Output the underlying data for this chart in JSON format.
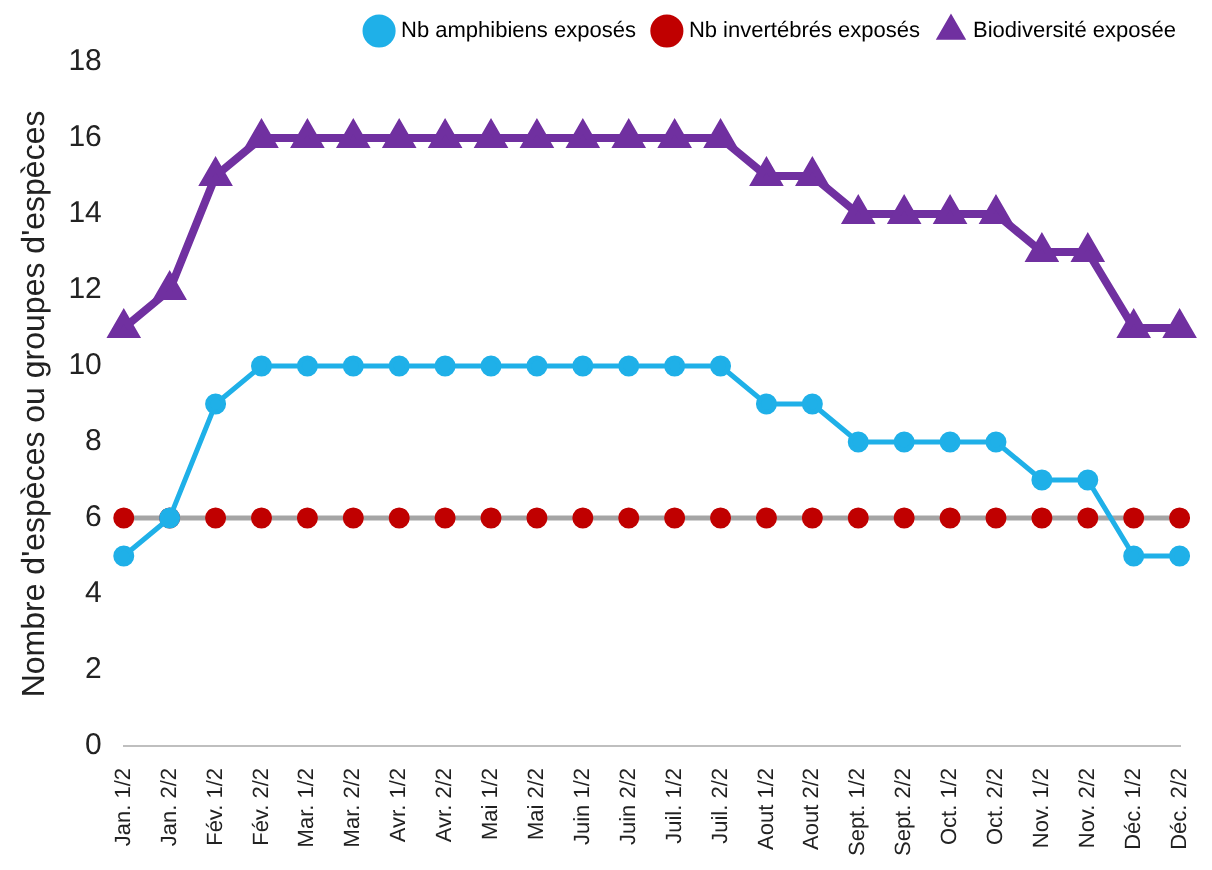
{
  "chart_data": {
    "type": "line",
    "ylabel": "Nombre d'espèces ou groupes d'espèces",
    "categories": [
      "Jan. 1/2",
      "Jan. 2/2",
      "Fév. 1/2",
      "Fév. 2/2",
      "Mar. 1/2",
      "Mar. 2/2",
      "Avr. 1/2",
      "Avr. 2/2",
      "Mai 1/2",
      "Mai 2/2",
      "Juin 1/2",
      "Juin 2/2",
      "Juil. 1/2",
      "Juil. 2/2",
      "Aout 1/2",
      "Aout 2/2",
      "Sept. 1/2",
      "Sept. 2/2",
      "Oct. 1/2",
      "Oct. 2/2",
      "Nov. 1/2",
      "Nov. 2/2",
      "Déc. 1/2",
      "Déc. 2/2"
    ],
    "series": [
      {
        "name": "Nb amphibiens exposés",
        "color": "#1fb0e8",
        "marker": "circle",
        "values": [
          5,
          6,
          9,
          10,
          10,
          10,
          10,
          10,
          10,
          10,
          10,
          10,
          10,
          10,
          9,
          9,
          8,
          8,
          8,
          8,
          7,
          7,
          5,
          5
        ]
      },
      {
        "name": "Nb invertébrés exposés",
        "color": "#a5a5a5",
        "colors": [
          "#c00000",
          "#c00000",
          "#c00000",
          "#c00000",
          "#c00000",
          "#c00000",
          "#c00000",
          "#c00000",
          "#c00000",
          "#c00000",
          "#c00000",
          "#c00000",
          "#c00000",
          "#c00000",
          "#c00000",
          "#c00000",
          "#c00000",
          "#c00000",
          "#c00000",
          "#c00000",
          "#c00000",
          "#c00000",
          "#c00000",
          "#c00000"
        ],
        "marker": "circle",
        "values": [
          6,
          6,
          6,
          6,
          6,
          6,
          6,
          6,
          6,
          6,
          6,
          6,
          6,
          6,
          6,
          6,
          6,
          6,
          6,
          6,
          6,
          6,
          6,
          6
        ]
      },
      {
        "name": "Biodiversité exposée",
        "color": "#7030a0",
        "marker": "triangle",
        "values": [
          11,
          12,
          15,
          16,
          16,
          16,
          16,
          16,
          16,
          16,
          16,
          16,
          16,
          16,
          15,
          15,
          14,
          14,
          14,
          14,
          13,
          13,
          11,
          11
        ]
      }
    ],
    "ylim": [
      0,
      18
    ],
    "yticks": [
      0,
      2,
      4,
      6,
      8,
      10,
      12,
      14,
      16,
      18
    ],
    "grid": false,
    "legend": "top right",
    "line_style": "solid"
  }
}
